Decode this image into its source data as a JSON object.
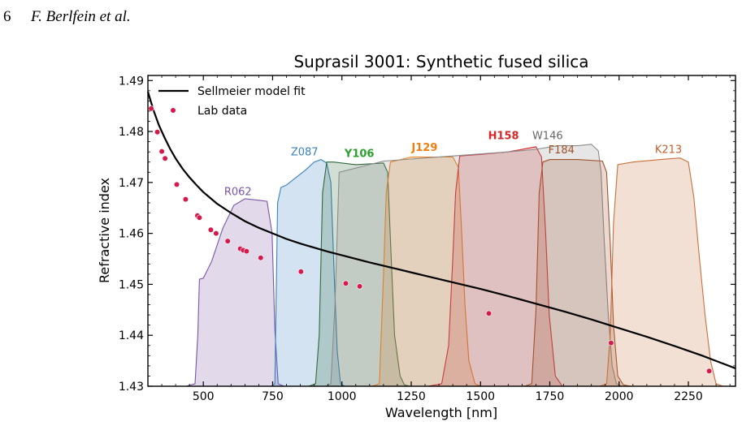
{
  "header": {
    "page_number": "6",
    "authors": "F. Berlfein et al."
  },
  "chart_data": {
    "type": "line",
    "title": "Suprasil 3001: Synthetic fused silica",
    "xlabel": "Wavelength [nm]",
    "ylabel": "Refractive index",
    "xlim": [
      300,
      2420
    ],
    "ylim": [
      1.43,
      1.491
    ],
    "xticks": [
      500,
      750,
      1000,
      1250,
      1500,
      1750,
      2000,
      2250
    ],
    "yticks": [
      1.43,
      1.44,
      1.45,
      1.46,
      1.47,
      1.48,
      1.49
    ],
    "grid": false,
    "legend": {
      "placement": "top-left",
      "entries": [
        {
          "label": "Sellmeier model fit",
          "kind": "line",
          "color": "#000000"
        },
        {
          "label": "Lab data",
          "kind": "marker",
          "color": "#d6184a"
        }
      ]
    },
    "series": [
      {
        "name": "Sellmeier model fit",
        "kind": "line",
        "color": "#000000",
        "x": [
          300,
          320,
          340,
          360,
          380,
          400,
          425,
          450,
          475,
          500,
          550,
          600,
          650,
          700,
          750,
          800,
          850,
          900,
          950,
          1000,
          1100,
          1200,
          1300,
          1400,
          1500,
          1600,
          1700,
          1800,
          1900,
          2000,
          2100,
          2200,
          2300,
          2420
        ],
        "y": [
          1.4878,
          1.4842,
          1.4812,
          1.4788,
          1.4766,
          1.4747,
          1.4727,
          1.471,
          1.4695,
          1.4681,
          1.4658,
          1.464,
          1.4624,
          1.4611,
          1.46,
          1.4589,
          1.458,
          1.4572,
          1.4564,
          1.4557,
          1.4543,
          1.453,
          1.4517,
          1.4504,
          1.4491,
          1.4477,
          1.4462,
          1.4447,
          1.4431,
          1.4414,
          1.4397,
          1.4379,
          1.436,
          1.4335
        ]
      },
      {
        "name": "Lab data",
        "kind": "scatter",
        "color": "#d6184a",
        "x": [
          312,
          334,
          350,
          362,
          404,
          436,
          479,
          486,
          527,
          546,
          588,
          633,
          644,
          656,
          707,
          852,
          1014,
          1064,
          1530,
          1971,
          2325
        ],
        "y": [
          1.4845,
          1.4799,
          1.4761,
          1.4747,
          1.4696,
          1.4667,
          1.4635,
          1.4631,
          1.4607,
          1.46,
          1.4585,
          1.457,
          1.4567,
          1.4565,
          1.4552,
          1.4525,
          1.4502,
          1.4496,
          1.4443,
          1.4385,
          1.433
        ]
      }
    ],
    "filters": [
      {
        "name": "R062",
        "color": "#7a55a6",
        "label_x": 625,
        "label_y": 1.4675,
        "x": [
          438,
          470,
          480,
          486,
          500,
          530,
          570,
          610,
          650,
          700,
          730,
          748,
          758,
          770,
          790
        ],
        "y": [
          1.43,
          1.4305,
          1.44,
          1.451,
          1.4512,
          1.4545,
          1.461,
          1.4655,
          1.4668,
          1.4665,
          1.4663,
          1.46,
          1.441,
          1.4305,
          1.43
        ]
      },
      {
        "name": "Z087",
        "color": "#3a80bf",
        "label_x": 865,
        "label_y": 1.4753,
        "x": [
          745,
          758,
          768,
          780,
          800,
          830,
          870,
          900,
          925,
          945,
          960,
          972,
          983,
          995,
          1010
        ],
        "y": [
          1.43,
          1.4305,
          1.466,
          1.469,
          1.4695,
          1.4708,
          1.4725,
          1.474,
          1.4745,
          1.4738,
          1.47,
          1.452,
          1.437,
          1.4305,
          1.43
        ]
      },
      {
        "name": "Y106",
        "color": "#2f6b3a",
        "label_x": 1063,
        "label_y": 1.475,
        "bold": true,
        "label_color": "#2ca02c",
        "x": [
          880,
          905,
          918,
          930,
          945,
          970,
          1050,
          1150,
          1165,
          1178,
          1190,
          1210,
          1225,
          1245
        ],
        "y": [
          1.43,
          1.4305,
          1.44,
          1.468,
          1.474,
          1.474,
          1.4735,
          1.4738,
          1.472,
          1.455,
          1.44,
          1.432,
          1.4303,
          1.43
        ]
      },
      {
        "name": "J129",
        "color": "#f07f13",
        "label_x": 1298,
        "label_y": 1.4762,
        "bold": true,
        "x": [
          1110,
          1135,
          1150,
          1160,
          1175,
          1250,
          1350,
          1400,
          1420,
          1432,
          1444,
          1458,
          1480,
          1500
        ],
        "y": [
          1.43,
          1.4305,
          1.452,
          1.468,
          1.474,
          1.475,
          1.475,
          1.475,
          1.473,
          1.46,
          1.446,
          1.435,
          1.4305,
          1.43
        ]
      },
      {
        "name": "H158",
        "color": "#d62728",
        "label_x": 1583,
        "label_y": 1.4785,
        "bold": true,
        "x": [
          1310,
          1360,
          1385,
          1400,
          1410,
          1425,
          1500,
          1600,
          1700,
          1720,
          1735,
          1748,
          1770,
          1795
        ],
        "y": [
          1.43,
          1.4305,
          1.438,
          1.455,
          1.468,
          1.4752,
          1.4755,
          1.476,
          1.477,
          1.475,
          1.46,
          1.444,
          1.432,
          1.43
        ]
      },
      {
        "name": "W146",
        "color": "#8c8c8c",
        "label_x": 1742,
        "label_y": 1.4785,
        "label_color": "#666666",
        "x": [
          940,
          960,
          975,
          990,
          1150,
          1400,
          1600,
          1700,
          1780,
          1850,
          1900,
          1925,
          1935,
          1945,
          1960,
          1975,
          1990,
          2010
        ],
        "y": [
          1.43,
          1.4305,
          1.446,
          1.472,
          1.4742,
          1.4752,
          1.476,
          1.4765,
          1.4772,
          1.4772,
          1.4775,
          1.4762,
          1.472,
          1.46,
          1.445,
          1.434,
          1.4305,
          1.43
        ]
      },
      {
        "name": "F184",
        "color": "#a0522d",
        "label_x": 1792,
        "label_y": 1.4757,
        "label_color": "#a0522d",
        "x": [
          1660,
          1685,
          1700,
          1712,
          1725,
          1750,
          1850,
          1940,
          1955,
          1968,
          1980,
          1995,
          2015,
          2040
        ],
        "y": [
          1.43,
          1.4305,
          1.445,
          1.468,
          1.474,
          1.4745,
          1.4745,
          1.4742,
          1.472,
          1.458,
          1.442,
          1.432,
          1.4303,
          1.43
        ]
      },
      {
        "name": "K213",
        "color": "#c8703c",
        "label_x": 2178,
        "label_y": 1.4758,
        "label_color": "#c0602a",
        "x": [
          1930,
          1955,
          1968,
          1980,
          1995,
          2050,
          2150,
          2220,
          2250,
          2270,
          2290,
          2310,
          2330,
          2350,
          2375
        ],
        "y": [
          1.43,
          1.4305,
          1.44,
          1.462,
          1.4735,
          1.474,
          1.4745,
          1.4748,
          1.474,
          1.467,
          1.455,
          1.444,
          1.435,
          1.4305,
          1.43
        ]
      }
    ]
  }
}
